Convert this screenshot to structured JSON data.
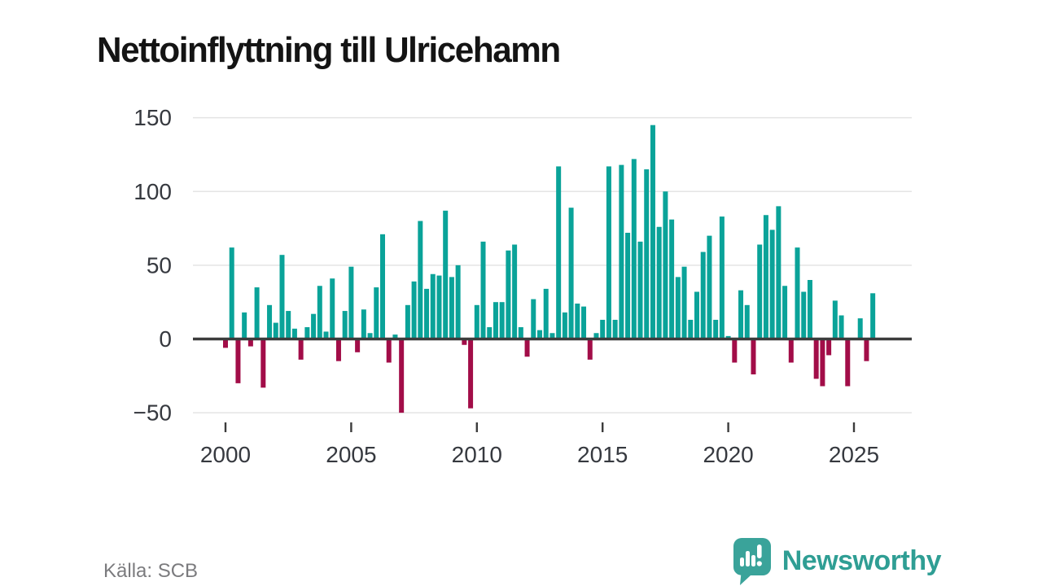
{
  "title": "Nettoinflyttning till Ulricehamn",
  "source": "Källa: SCB",
  "branding": {
    "name": "Newsworthy"
  },
  "colors": {
    "positive": "#0aa399",
    "negative": "#a20d48",
    "axis": "#3c3c3c",
    "grid": "#e4e4e4",
    "tick_text": "#36393f",
    "title_text": "#141414",
    "source_text": "#7b7b7e",
    "brand": "#2f9e94",
    "logo_bubble": "#3aa39a",
    "background": "#ffffff"
  },
  "chart_data": {
    "type": "bar",
    "title": "Nettoinflyttning till Ulricehamn",
    "xlabel": "",
    "ylabel": "",
    "x_tick_labels": [
      "2000",
      "2005",
      "2010",
      "2015",
      "2020",
      "2025"
    ],
    "y_ticks": [
      150,
      100,
      50,
      0,
      -50
    ],
    "y_tick_labels": [
      "150",
      "100",
      "50",
      "0",
      "−50"
    ],
    "ylim": [
      -60,
      160
    ],
    "grid": "horizontal",
    "legend": "none",
    "frequency": "quarterly",
    "years": [
      {
        "year": 2000,
        "quarters": [
          -6,
          62,
          -30,
          18
        ]
      },
      {
        "year": 2001,
        "quarters": [
          -5,
          35,
          -33,
          23
        ]
      },
      {
        "year": 2002,
        "quarters": [
          11,
          57,
          19,
          7
        ]
      },
      {
        "year": 2003,
        "quarters": [
          -14,
          8,
          17,
          36
        ]
      },
      {
        "year": 2004,
        "quarters": [
          5,
          41,
          -15,
          19
        ]
      },
      {
        "year": 2005,
        "quarters": [
          49,
          -9,
          20,
          4
        ]
      },
      {
        "year": 2006,
        "quarters": [
          35,
          71,
          -16,
          3
        ]
      },
      {
        "year": 2007,
        "quarters": [
          -50,
          23,
          39,
          80
        ]
      },
      {
        "year": 2008,
        "quarters": [
          34,
          44,
          43,
          87
        ]
      },
      {
        "year": 2009,
        "quarters": [
          42,
          50,
          -4,
          -47
        ]
      },
      {
        "year": 2010,
        "quarters": [
          23,
          66,
          8,
          25
        ]
      },
      {
        "year": 2011,
        "quarters": [
          25,
          60,
          64,
          8
        ]
      },
      {
        "year": 2012,
        "quarters": [
          -12,
          27,
          6,
          34
        ]
      },
      {
        "year": 2013,
        "quarters": [
          4,
          117,
          18,
          89
        ]
      },
      {
        "year": 2014,
        "quarters": [
          24,
          22,
          -14,
          4
        ]
      },
      {
        "year": 2015,
        "quarters": [
          13,
          117,
          13,
          118
        ]
      },
      {
        "year": 2016,
        "quarters": [
          72,
          122,
          66,
          115
        ]
      },
      {
        "year": 2017,
        "quarters": [
          145,
          76,
          100,
          81
        ]
      },
      {
        "year": 2018,
        "quarters": [
          42,
          49,
          13,
          32
        ]
      },
      {
        "year": 2019,
        "quarters": [
          59,
          70,
          13,
          83
        ]
      },
      {
        "year": 2020,
        "quarters": [
          2,
          -16,
          33,
          23
        ]
      },
      {
        "year": 2021,
        "quarters": [
          -24,
          64,
          84,
          74
        ]
      },
      {
        "year": 2022,
        "quarters": [
          90,
          36,
          -16,
          62
        ]
      },
      {
        "year": 2023,
        "quarters": [
          32,
          40,
          -27,
          -32
        ]
      },
      {
        "year": 2024,
        "quarters": [
          -11,
          26,
          16,
          -32
        ]
      },
      {
        "year": 2025,
        "quarters": [
          0,
          14,
          -15,
          31
        ]
      }
    ]
  }
}
